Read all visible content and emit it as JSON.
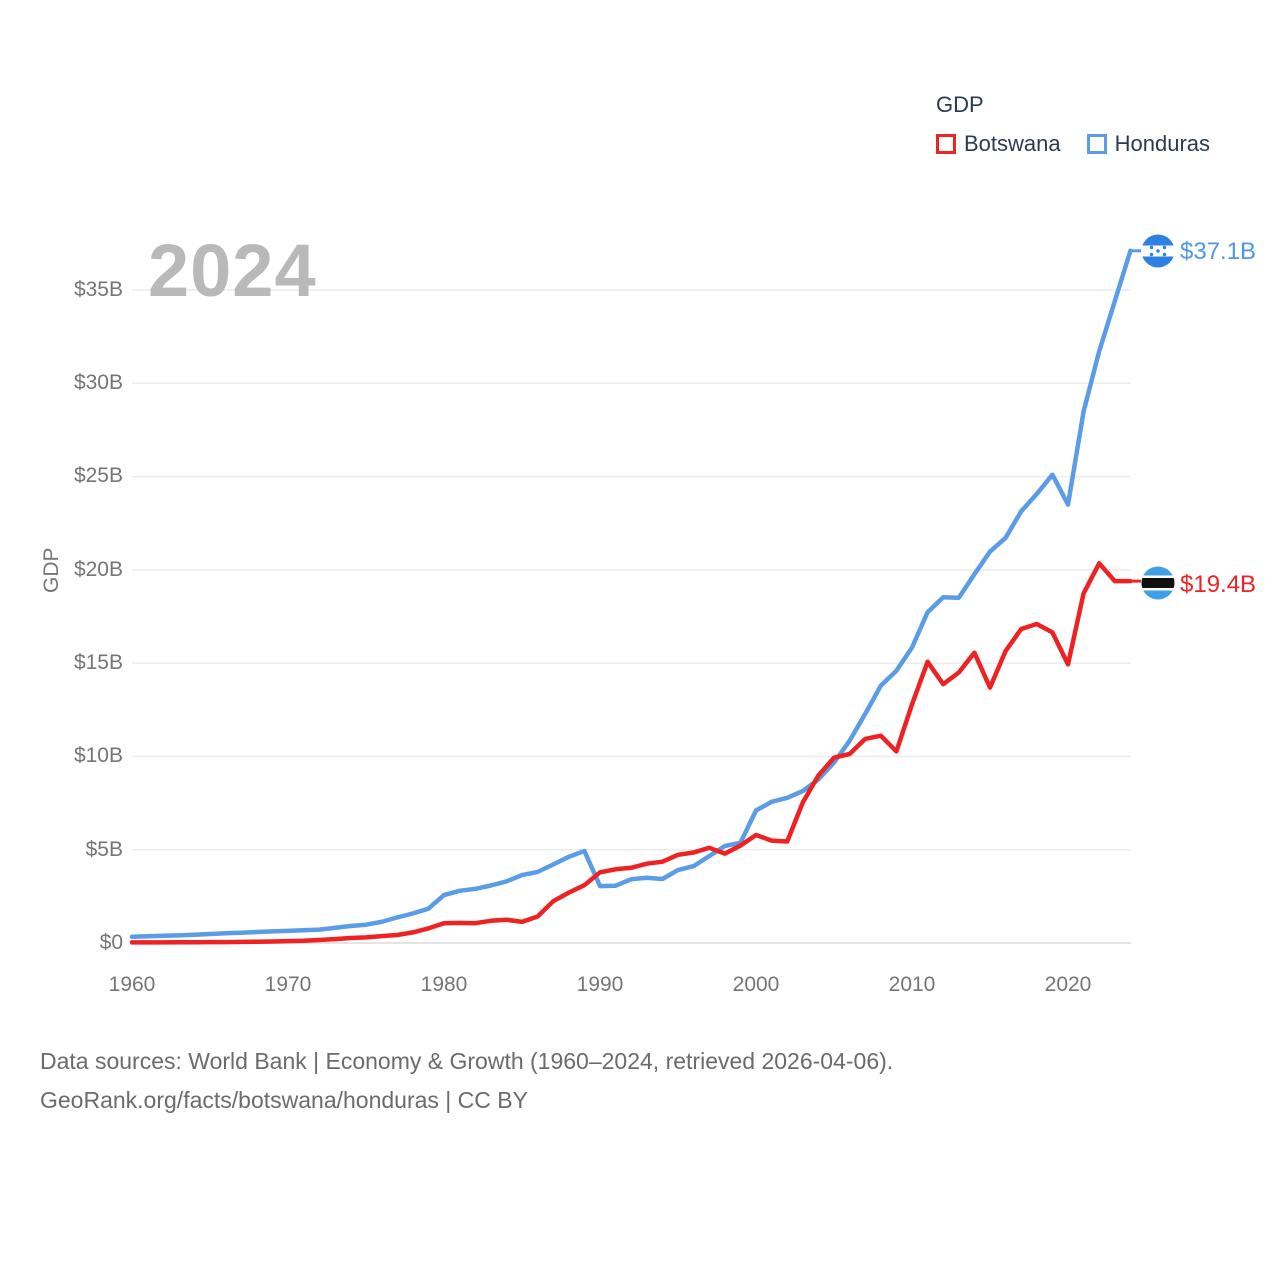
{
  "legend": {
    "title": "GDP",
    "items": [
      {
        "label": "Botswana",
        "color": "#ee2222"
      },
      {
        "label": "Honduras",
        "color": "#5b9ce6"
      }
    ]
  },
  "watermark": "2024",
  "y_axis": {
    "label": "GDP",
    "tick_labels": [
      "$35B",
      "$30B",
      "$25B",
      "$20B",
      "$15B",
      "$10B",
      "$5B",
      "$0"
    ],
    "tick_values": [
      35,
      30,
      25,
      20,
      15,
      10,
      5,
      0
    ]
  },
  "x_axis": {
    "tick_labels": [
      "1960",
      "1970",
      "1980",
      "1990",
      "2000",
      "2010",
      "2020"
    ],
    "tick_values": [
      1960,
      1970,
      1980,
      1990,
      2000,
      2010,
      2020
    ]
  },
  "end_labels": {
    "honduras": {
      "value": "$37.1B",
      "color": "#4f97e5",
      "flag": "honduras-flag"
    },
    "botswana": {
      "value": "$19.4B",
      "color": "#ee2222",
      "flag": "botswana-flag"
    }
  },
  "footer": {
    "line1": "Data sources: World Bank | Economy & Growth (1960–2024, retrieved 2026-04-06).",
    "line2": "GeoRank.org/facts/botswana/honduras | CC BY"
  },
  "chart_data": {
    "type": "line",
    "title": "GDP",
    "ylabel": "GDP",
    "unit": "billion USD",
    "x_start": 1960,
    "x_end": 2024,
    "ylim": [
      0,
      37.5
    ],
    "grid": "horizontal",
    "legend_position": "top-right",
    "series": [
      {
        "name": "Botswana",
        "color": "#ee2222",
        "final_label": "$19.4B",
        "values": [
          0.03,
          0.03,
          0.03,
          0.04,
          0.04,
          0.05,
          0.05,
          0.06,
          0.07,
          0.08,
          0.1,
          0.12,
          0.16,
          0.21,
          0.27,
          0.3,
          0.37,
          0.43,
          0.57,
          0.78,
          1.06,
          1.08,
          1.06,
          1.19,
          1.25,
          1.13,
          1.42,
          2.24,
          2.7,
          3.1,
          3.79,
          3.95,
          4.03,
          4.25,
          4.36,
          4.73,
          4.85,
          5.1,
          4.79,
          5.22,
          5.79,
          5.49,
          5.44,
          7.53,
          8.98,
          9.93,
          10.13,
          10.94,
          11.11,
          10.27,
          12.79,
          15.07,
          13.87,
          14.5,
          15.56,
          13.69,
          15.65,
          16.83,
          17.1,
          16.65,
          14.93,
          18.74,
          20.35,
          19.4,
          19.4
        ]
      },
      {
        "name": "Honduras",
        "color": "#5b9ce6",
        "final_label": "$37.1B",
        "values": [
          0.34,
          0.36,
          0.39,
          0.41,
          0.44,
          0.48,
          0.52,
          0.55,
          0.59,
          0.62,
          0.65,
          0.68,
          0.72,
          0.81,
          0.91,
          0.98,
          1.13,
          1.37,
          1.58,
          1.84,
          2.57,
          2.8,
          2.9,
          3.08,
          3.3,
          3.64,
          3.81,
          4.21,
          4.62,
          4.93,
          3.05,
          3.07,
          3.42,
          3.5,
          3.43,
          3.91,
          4.12,
          4.66,
          5.2,
          5.37,
          7.1,
          7.57,
          7.78,
          8.14,
          8.77,
          9.67,
          10.84,
          12.28,
          13.79,
          14.59,
          15.84,
          17.73,
          18.53,
          18.5,
          19.76,
          20.98,
          21.72,
          23.14,
          24.07,
          25.1,
          23.5,
          28.49,
          31.72,
          34.4,
          37.1
        ]
      }
    ]
  }
}
